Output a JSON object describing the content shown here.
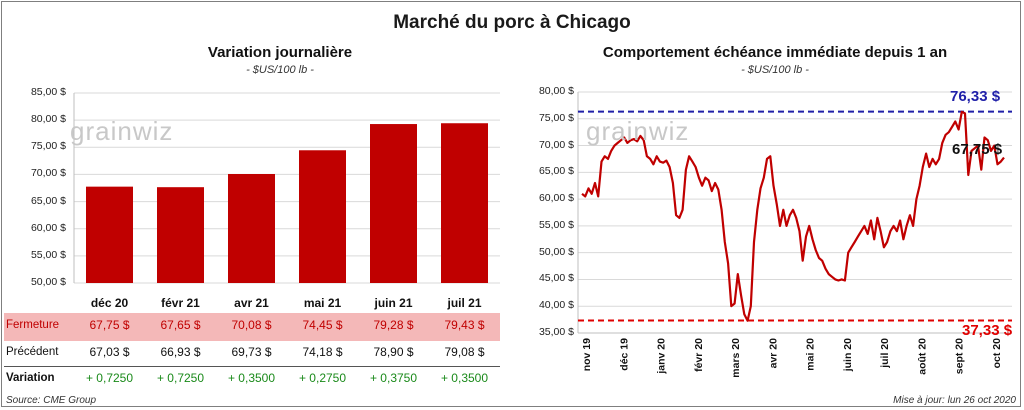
{
  "title": "Marché du porc à Chicago",
  "left_panel": {
    "title": "Variation journalière",
    "unit": "- $US/100 lb -",
    "table": {
      "rows": [
        {
          "label": "Fermeture",
          "values": [
            "67,75  $",
            "67,65  $",
            "70,08  $",
            "74,45  $",
            "79,28  $",
            "79,43  $"
          ]
        },
        {
          "label": "Précédent",
          "values": [
            "67,03  $",
            "66,93  $",
            "69,73  $",
            "74,18  $",
            "78,90  $",
            "79,08  $"
          ]
        },
        {
          "label": "Variation",
          "values": [
            "+ 0,7250",
            "+ 0,7250",
            "+ 0,3500",
            "+ 0,2750",
            "+ 0,3750",
            "+ 0,3500"
          ]
        }
      ]
    }
  },
  "right_panel": {
    "title": "Comportement  échéance immédiate depuis 1 an",
    "unit": "- $US/100 lb -",
    "annotations": {
      "high": "76,33 $",
      "low": "37,33 $",
      "last": "67,75 $"
    }
  },
  "watermark": "grainwiz",
  "footer": {
    "source": "Source: CME Group",
    "updated": "Mise à jour: lun 26 oct 2020"
  },
  "colors": {
    "bar": "#c00000",
    "line": "#c00000",
    "high_line": "#1f1fa8",
    "low_line": "#e00000",
    "table_highlight": "#f4b8b8",
    "positive": "#1a8a1a"
  },
  "chart_data": [
    {
      "type": "bar",
      "categories": [
        "déc 20",
        "févr 21",
        "avr 21",
        "mai 21",
        "juin 21",
        "juil 21"
      ],
      "values": [
        67.75,
        67.65,
        70.08,
        74.45,
        79.28,
        79.43
      ],
      "ylim": [
        50,
        85
      ],
      "yticks": [
        "50,00 $",
        "55,00 $",
        "60,00 $",
        "65,00 $",
        "70,00 $",
        "75,00 $",
        "80,00 $",
        "85,00 $"
      ],
      "grid": true
    },
    {
      "type": "line",
      "ylim": [
        35,
        80
      ],
      "yticks": [
        "35,00 $",
        "40,00 $",
        "45,00 $",
        "50,00 $",
        "55,00 $",
        "60,00 $",
        "65,00 $",
        "70,00 $",
        "75,00 $",
        "80,00 $"
      ],
      "xlabels": [
        "nov 19",
        "déc 19",
        "janv 20",
        "févr 20",
        "mars 20",
        "avr 20",
        "mai 20",
        "juin 20",
        "juil 20",
        "août 20",
        "sept 20",
        "oct 20"
      ],
      "high": 76.33,
      "low": 37.33,
      "last": 67.75,
      "values": [
        61,
        60.5,
        62,
        61,
        63,
        60.5,
        67,
        68,
        67.5,
        69,
        70,
        70.5,
        71,
        71.5,
        70.5,
        71,
        71.2,
        70.8,
        71.8,
        71,
        68,
        67.5,
        66.5,
        68,
        67,
        66.8,
        67.2,
        66,
        63,
        57,
        56.5,
        58,
        65.5,
        68,
        67,
        66,
        64,
        62.5,
        64,
        63.5,
        61.5,
        63,
        61.8,
        58,
        52,
        48,
        40,
        40.5,
        46,
        42,
        38.5,
        37.3,
        40,
        52,
        58,
        62,
        64,
        67.5,
        68,
        62.5,
        59,
        55,
        58,
        55,
        57,
        58,
        56.5,
        54,
        48.5,
        53,
        55,
        52.5,
        50.5,
        49,
        48.5,
        47,
        46,
        45.5,
        45,
        44.8,
        45,
        44.8,
        50,
        51,
        52,
        53,
        54,
        55,
        53.5,
        56,
        52.5,
        56.5,
        54,
        51,
        52,
        54,
        55,
        54,
        56,
        52.5,
        55,
        57,
        55,
        60,
        62.5,
        66,
        68.5,
        66,
        67.5,
        66.5,
        67.5,
        70.5,
        72,
        72.5,
        73.5,
        74.5,
        73,
        76.3,
        76,
        64.5,
        69,
        69.5,
        70,
        65.5,
        71.5,
        71,
        69,
        70,
        66.5,
        67,
        67.75
      ]
    }
  ]
}
